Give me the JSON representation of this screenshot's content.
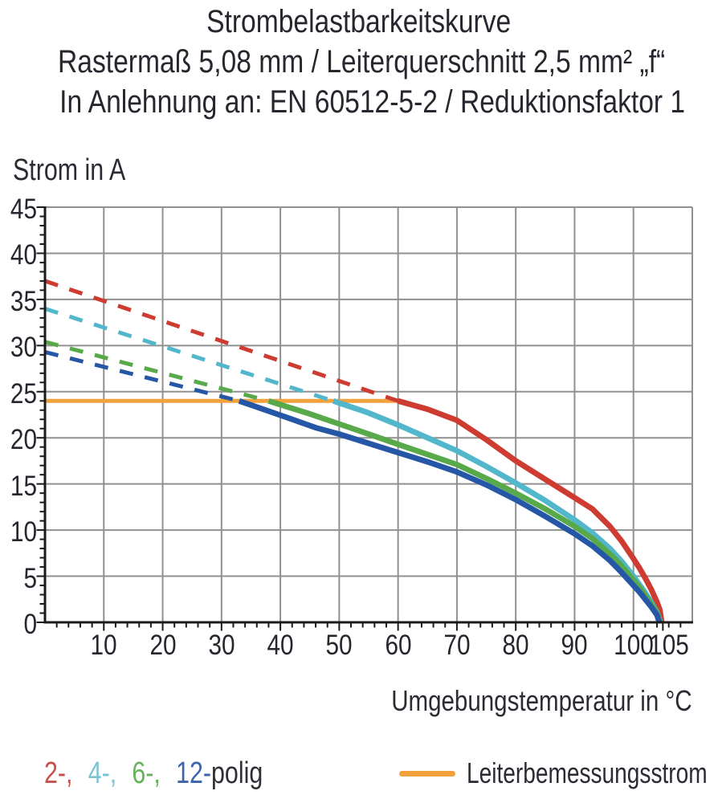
{
  "title": {
    "line1": "Strombelastbarkeitskurve",
    "line2": "Rastermaß 5,08 mm / Leiterquerschnitt 2,5 mm² „f“",
    "line3": "In Anlehnung an: EN 60512-5-2 / Reduktionsfaktor 1"
  },
  "chart_data": {
    "type": "line",
    "title": "Strombelastbarkeitskurve",
    "xlabel": "Umgebungstemperatur in °C",
    "ylabel": "Strom in A",
    "xlim": [
      0,
      110
    ],
    "ylim": [
      0,
      45
    ],
    "x_tick_labels": [
      10,
      20,
      30,
      40,
      50,
      60,
      70,
      80,
      90,
      100,
      105
    ],
    "x_minor_tick_step": 2,
    "y_tick_labels": [
      0,
      5,
      10,
      15,
      20,
      25,
      30,
      35,
      40,
      45
    ],
    "y_minor_tick_step": 1,
    "grid": true,
    "x_gridlines": [
      10,
      20,
      30,
      40,
      50,
      60,
      70,
      80,
      90,
      100,
      110
    ],
    "y_gridlines": [
      5,
      10,
      15,
      20,
      25,
      30,
      35,
      40,
      45
    ],
    "legend_position": "bottom",
    "colors": {
      "grid": "#909090",
      "axis": "#1a1a1a",
      "text": "#2b2b33"
    },
    "reference_line": {
      "label": "Leiterbemessungsstrom",
      "current_a": 24,
      "x_start": 0,
      "x_end": 60,
      "color": "#f2a13c"
    },
    "series": [
      {
        "name": "2-polig",
        "color": "#ce3b31",
        "dashed": [
          [
            0,
            37
          ],
          [
            60,
            24
          ]
        ],
        "solid": [
          [
            60,
            24
          ],
          [
            65,
            23.1
          ],
          [
            70,
            21.9
          ],
          [
            75,
            19.8
          ],
          [
            80,
            17.5
          ],
          [
            85,
            15.5
          ],
          [
            90,
            13.5
          ],
          [
            93,
            12.3
          ],
          [
            96,
            10.4
          ],
          [
            98,
            8.8
          ],
          [
            100,
            6.9
          ],
          [
            101,
            5.9
          ],
          [
            102,
            4.8
          ],
          [
            103,
            3.6
          ],
          [
            104,
            2.2
          ],
          [
            104.5,
            1.3
          ],
          [
            104.8,
            0
          ]
        ]
      },
      {
        "name": "4-polig",
        "color": "#53b7cc",
        "dashed": [
          [
            0,
            34
          ],
          [
            49,
            24
          ]
        ],
        "solid": [
          [
            49,
            24
          ],
          [
            55,
            22.7
          ],
          [
            60,
            21.4
          ],
          [
            65,
            20.0
          ],
          [
            70,
            18.6
          ],
          [
            75,
            16.9
          ],
          [
            80,
            15.1
          ],
          [
            85,
            13.2
          ],
          [
            90,
            11.1
          ],
          [
            93,
            9.7
          ],
          [
            96,
            8.0
          ],
          [
            98,
            6.6
          ],
          [
            100,
            5.0
          ],
          [
            101,
            4.1
          ],
          [
            102,
            3.2
          ],
          [
            103,
            2.2
          ],
          [
            104,
            1.1
          ],
          [
            104.6,
            0
          ]
        ]
      },
      {
        "name": "6-polig",
        "color": "#57a94a",
        "dashed": [
          [
            0,
            30.4
          ],
          [
            38,
            24
          ]
        ],
        "solid": [
          [
            38,
            24
          ],
          [
            45,
            22.6
          ],
          [
            50,
            21.5
          ],
          [
            55,
            20.4
          ],
          [
            60,
            19.3
          ],
          [
            65,
            18.2
          ],
          [
            70,
            17.1
          ],
          [
            75,
            15.6
          ],
          [
            80,
            14.0
          ],
          [
            85,
            12.3
          ],
          [
            90,
            10.4
          ],
          [
            93,
            9.1
          ],
          [
            96,
            7.4
          ],
          [
            98,
            6.1
          ],
          [
            100,
            4.6
          ],
          [
            101,
            3.8
          ],
          [
            102,
            2.9
          ],
          [
            103,
            2.0
          ],
          [
            104,
            1.0
          ],
          [
            104.5,
            0
          ]
        ]
      },
      {
        "name": "12-polig",
        "color": "#2557a6",
        "dashed": [
          [
            0,
            29.3
          ],
          [
            33,
            24
          ]
        ],
        "solid": [
          [
            33,
            24
          ],
          [
            38,
            22.9
          ],
          [
            42,
            22.0
          ],
          [
            46,
            21.1
          ],
          [
            50,
            20.4
          ],
          [
            55,
            19.4
          ],
          [
            60,
            18.4
          ],
          [
            65,
            17.4
          ],
          [
            70,
            16.3
          ],
          [
            75,
            14.9
          ],
          [
            80,
            13.3
          ],
          [
            85,
            11.5
          ],
          [
            90,
            9.6
          ],
          [
            93,
            8.3
          ],
          [
            96,
            6.7
          ],
          [
            98,
            5.4
          ],
          [
            100,
            4.0
          ],
          [
            101,
            3.3
          ],
          [
            102,
            2.5
          ],
          [
            103,
            1.7
          ],
          [
            104,
            0.8
          ],
          [
            104.4,
            0
          ]
        ]
      }
    ]
  },
  "legend": {
    "pole_items": [
      {
        "label": "2-,",
        "color": "#c94f49"
      },
      {
        "label": "4-,",
        "color": "#7cc3d2"
      },
      {
        "label": "6-,",
        "color": "#66b35b"
      },
      {
        "label": "12-",
        "color": "#3d63ab"
      }
    ],
    "pole_suffix": "polig",
    "suffix_color": "#2f2f38",
    "reference_label": "Leiterbemessungsstrom",
    "reference_color": "#f2a13c"
  }
}
